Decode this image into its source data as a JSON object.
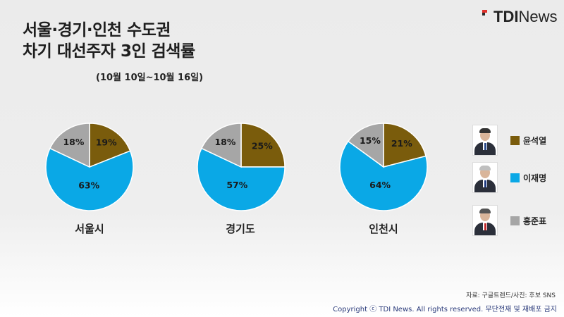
{
  "logo": {
    "part1": "TDI",
    "part2": "News"
  },
  "title": {
    "line1": "서울·경기·인천 수도권",
    "line2": "차기 대선주자 3인 검색률"
  },
  "subtitle": "(10월 10일~10월 16일)",
  "colors": {
    "윤석열": "#7a5c0c",
    "이재명": "#0aa8e6",
    "홍준표": "#a6a6a6"
  },
  "chart_data": {
    "type": "pie",
    "series_names": [
      "윤석열",
      "이재명",
      "홍준표"
    ],
    "pies": [
      {
        "label": "서울시",
        "values": [
          19,
          63,
          18
        ]
      },
      {
        "label": "경기도",
        "values": [
          25,
          57,
          18
        ]
      },
      {
        "label": "인천시",
        "values": [
          21,
          64,
          15
        ]
      }
    ]
  },
  "legend": [
    {
      "name": "윤석열",
      "icon": "photo-윤석열"
    },
    {
      "name": "이재명",
      "icon": "photo-이재명"
    },
    {
      "name": "홍준표",
      "icon": "photo-홍준표"
    }
  ],
  "source": "자료: 구글트렌드/사진: 후보 SNS",
  "copyright": "Copyright ⓒ TDI News. All rights reserved. 무단전재 및 재배포 금지"
}
